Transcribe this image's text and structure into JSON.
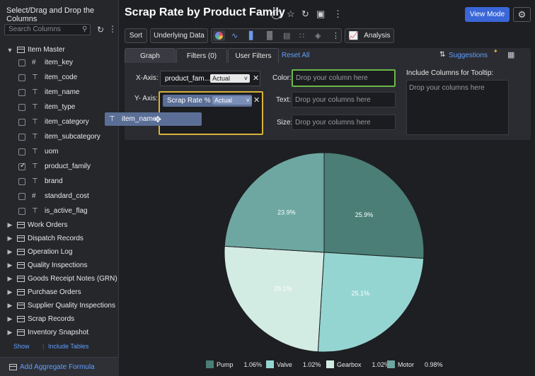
{
  "sidebar": {
    "title": "Select/Drag and Drop the Columns",
    "search_placeholder": "Search Columns",
    "tables": [
      {
        "name": "Item Master",
        "expanded": true
      },
      {
        "name": "Work Orders"
      },
      {
        "name": "Dispatch Records"
      },
      {
        "name": "Operation Log"
      },
      {
        "name": "Quality Inspections"
      },
      {
        "name": "Goods Receipt Notes (GRN)"
      },
      {
        "name": "Purchase Orders"
      },
      {
        "name": "Supplier Quality Inspections"
      },
      {
        "name": "Scrap Records"
      },
      {
        "name": "Inventory Snapshot"
      }
    ],
    "columns": [
      {
        "name": "item_key",
        "type": "#",
        "checked": false
      },
      {
        "name": "item_code",
        "type": "T",
        "checked": false
      },
      {
        "name": "item_name",
        "type": "T",
        "checked": false
      },
      {
        "name": "item_type",
        "type": "T",
        "checked": false
      },
      {
        "name": "item_category",
        "type": "T",
        "checked": false
      },
      {
        "name": "item_subcategory",
        "type": "T",
        "checked": false
      },
      {
        "name": "uom",
        "type": "T",
        "checked": false
      },
      {
        "name": "product_family",
        "type": "T",
        "checked": true
      },
      {
        "name": "brand",
        "type": "T",
        "checked": false
      },
      {
        "name": "standard_cost",
        "type": "#",
        "checked": false
      },
      {
        "name": "is_active_flag",
        "type": "T",
        "checked": false
      }
    ],
    "show_link": "Show",
    "include_tables_link": "Include Tables",
    "add_aggregate": "Add Aggregate Formula"
  },
  "drag_ghost": {
    "label": "item_name"
  },
  "header": {
    "title": "Scrap Rate by Product Family",
    "view_mode": "View Mode"
  },
  "toolbar": {
    "sort": "Sort",
    "underlying_data": "Underlying Data",
    "analysis": "Analysis"
  },
  "panel": {
    "tabs": [
      {
        "label": "Graph",
        "active": true
      },
      {
        "label": "Filters  (0)",
        "active": false
      },
      {
        "label": "User Filters",
        "active": false
      }
    ],
    "reset_all": "Reset All",
    "suggestions": "Suggestions",
    "x_axis_label": "X-Axis:",
    "y_axis_label": "Y- Axis:",
    "x_field": "product_fam...",
    "x_agg": "Actual",
    "y_field": "Scrap Rate %",
    "y_agg": "Actual",
    "color_label": "Color:",
    "text_label": "Text:",
    "size_label": "Size:",
    "color_placeholder": "Drop your column here",
    "text_placeholder": "Drop your columns here",
    "size_placeholder": "Drop your columns here",
    "tooltip_label": "Include Columns for Tooltip:",
    "tooltip_placeholder": "Drop your columns here"
  },
  "chart_data": {
    "type": "pie",
    "categories": [
      "Pump",
      "Valve",
      "Gearbox",
      "Motor"
    ],
    "values": [
      1.06,
      1.02,
      1.02,
      0.98
    ],
    "value_labels": [
      "1.06%",
      "1.02%",
      "1.02%",
      "0.98%"
    ],
    "slice_labels": [
      "25.9%",
      "25.1%",
      "25.1%",
      "23.9%"
    ],
    "colors": [
      "#4a7e76",
      "#95d5d1",
      "#d3ece3",
      "#6ea7a2"
    ],
    "legend_position": "bottom"
  }
}
